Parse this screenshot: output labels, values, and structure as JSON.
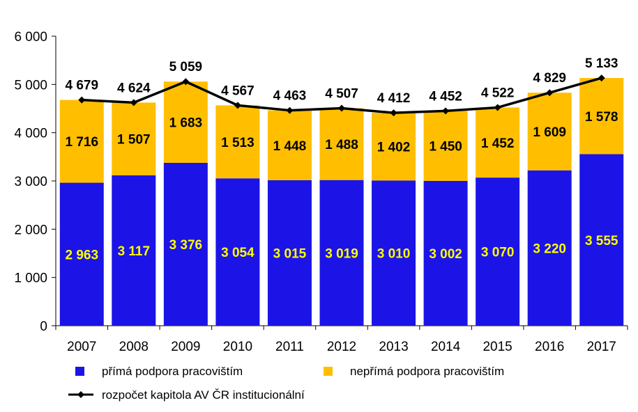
{
  "chart_data": {
    "type": "bar",
    "stacked": true,
    "categories": [
      "2007",
      "2008",
      "2009",
      "2010",
      "2011",
      "2012",
      "2013",
      "2014",
      "2015",
      "2016",
      "2017"
    ],
    "series": [
      {
        "name": "přímá podpora pracovištím",
        "type": "bar",
        "color": "#1C14E6",
        "values": [
          2963,
          3117,
          3376,
          3054,
          3015,
          3019,
          3010,
          3002,
          3070,
          3220,
          3555
        ],
        "labels": [
          "2 963",
          "3 117",
          "3 376",
          "3 054",
          "3 015",
          "3 019",
          "3 010",
          "3 002",
          "3 070",
          "3 220",
          "3 555"
        ]
      },
      {
        "name": "nepřímá podpora pracovištím",
        "type": "bar",
        "color": "#FFBF00",
        "values": [
          1716,
          1507,
          1683,
          1513,
          1448,
          1488,
          1402,
          1450,
          1452,
          1609,
          1578
        ],
        "labels": [
          "1 716",
          "1 507",
          "1 683",
          "1 513",
          "1 448",
          "1 488",
          "1 402",
          "1 450",
          "1 452",
          "1 609",
          "1 578"
        ]
      },
      {
        "name": "rozpočet kapitola AV ČR institucionální",
        "type": "line",
        "color": "#000000",
        "values": [
          4679,
          4624,
          5059,
          4567,
          4463,
          4507,
          4412,
          4452,
          4522,
          4829,
          5133
        ],
        "labels": [
          "4 679",
          "4 624",
          "5 059",
          "4 567",
          "4 463",
          "4 507",
          "4 412",
          "4 452",
          "4 522",
          "4 829",
          "5 133"
        ]
      }
    ],
    "yticks": [
      0,
      1000,
      2000,
      3000,
      4000,
      5000,
      6000
    ],
    "ytick_labels": [
      "0",
      "1 000",
      "2 000",
      "3 000",
      "4 000",
      "5 000",
      "6 000"
    ],
    "ylim": [
      0,
      6000
    ],
    "grid": false,
    "legend_position": "bottom",
    "data_label_color_bottom": "#FFFF00",
    "data_label_color_other": "#000000"
  }
}
